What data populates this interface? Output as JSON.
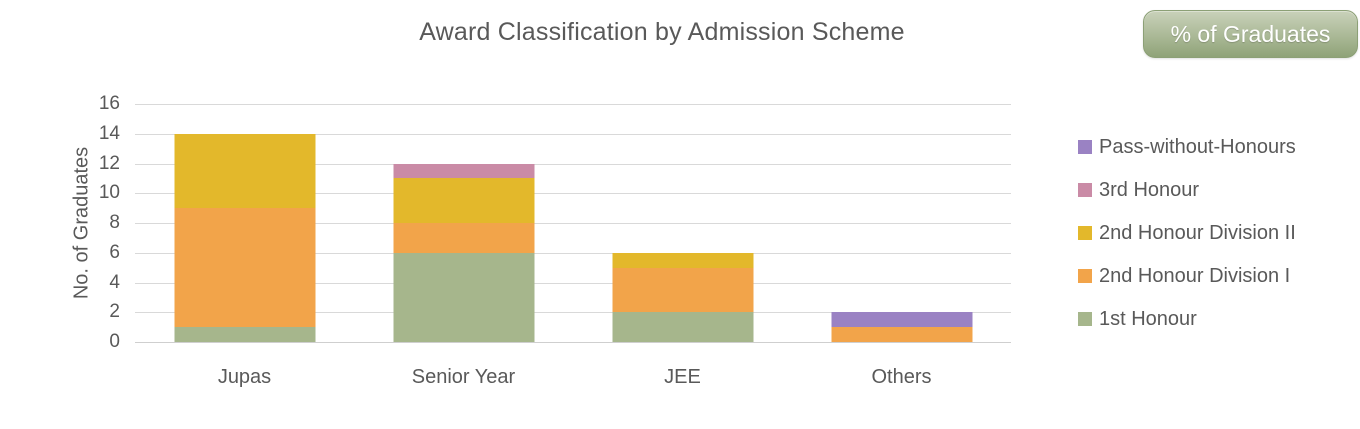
{
  "header": {
    "title": "Award Classification by Admission Scheme",
    "toggle_button_label": "% of Graduates"
  },
  "chart_data": {
    "type": "bar",
    "stacked": true,
    "title": "Award Classification by Admission Scheme",
    "xlabel": "",
    "ylabel": "No. of Graduates",
    "categories": [
      "Jupas",
      "Senior Year",
      "JEE",
      "Others"
    ],
    "series": [
      {
        "name": "1st Honour",
        "color": "#a6b68c",
        "values": [
          1,
          6,
          2,
          0
        ]
      },
      {
        "name": "2nd Honour Division I",
        "color": "#f2a44a",
        "values": [
          8,
          2,
          3,
          1
        ]
      },
      {
        "name": "2nd Honour Division II",
        "color": "#e3b82b",
        "values": [
          5,
          3,
          1,
          0
        ]
      },
      {
        "name": "3rd Honour",
        "color": "#ca8ba6",
        "values": [
          0,
          1,
          0,
          0
        ]
      },
      {
        "name": "Pass-without-Honours",
        "color": "#9a82c3",
        "values": [
          0,
          0,
          0,
          1
        ]
      }
    ],
    "stack_order_bottom_to_top": [
      "1st Honour",
      "2nd Honour Division I",
      "2nd Honour Division II",
      "3rd Honour",
      "Pass-without-Honours"
    ],
    "totals": {
      "Jupas": 14,
      "Senior Year": 12,
      "JEE": 6,
      "Others": 2
    },
    "ylim": [
      0,
      16
    ],
    "yticks": [
      0,
      2,
      4,
      6,
      8,
      10,
      12,
      14,
      16
    ],
    "grid": "horizontal",
    "legend_position": "right",
    "legend_top_to_bottom": [
      "Pass-without-Honours",
      "3rd Honour",
      "2nd Honour Division II",
      "2nd Honour Division I",
      "1st Honour"
    ]
  },
  "colors": {
    "title_text": "#595959",
    "axis_text": "#595959",
    "gridline": "#d9d9d9",
    "button_gradient_top": "#c9d2ba",
    "button_gradient_bottom": "#8fa378",
    "button_text": "#ffffff"
  }
}
